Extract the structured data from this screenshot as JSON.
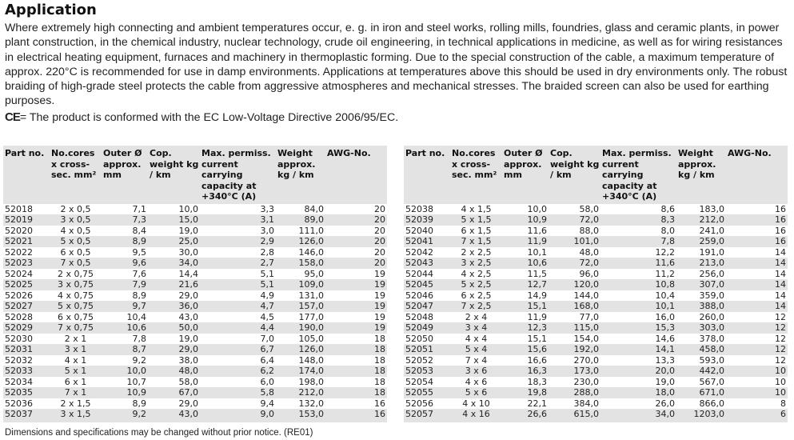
{
  "heading": "Application",
  "intro": "Where extremely high connecting and ambient temperatures occur, e. g. in iron and steel works, rolling mills, foundries, glass and ceramic plants, in power plant construction, in the chemical industry, nuclear technology, crude oil engineering, in technical applications in medicine, as well as for wiring resistances in electrical heating equipment, furnaces and machinery in thermoplastic forming. Due to the special construction of the cable, a maximum temperature of approx. 220°C is recommended for use in damp environments. Applications at temperatures above this should be used in dry environments only. The robust braiding of high-grade steel protects the cable from aggressive atmospheres and mechanical stresses. The braided screen can also be used for earthing purposes.",
  "ce_mark": "CE",
  "ce_text": "= The product is conformed with the EC Low-Voltage Directive 2006/95/EC.",
  "table_headers": {
    "part_no": "Part no.",
    "cores": "No.cores x cross-sec. mm²",
    "outer": "Outer Ø approx. mm",
    "cop": "Cop. weight kg / km",
    "current": "Max. permiss. current carrying capacity at +340°C (A)",
    "weight": "Weight approx. kg / km",
    "awg": "AWG-No."
  },
  "left_rows": [
    [
      "52018",
      "2 x 0,5",
      "7,1",
      "10,0",
      "3,3",
      "84,0",
      "20"
    ],
    [
      "52019",
      "3 x 0,5",
      "7,3",
      "15,0",
      "3,1",
      "89,0",
      "20"
    ],
    [
      "52020",
      "4 x 0,5",
      "8,4",
      "19,0",
      "3,0",
      "111,0",
      "20"
    ],
    [
      "52021",
      "5 x 0,5",
      "8,9",
      "25,0",
      "2,9",
      "126,0",
      "20"
    ],
    [
      "52022",
      "6 x 0,5",
      "9,5",
      "30,0",
      "2,8",
      "146,0",
      "20"
    ],
    [
      "52023",
      "7 x 0,5",
      "9,6",
      "34,0",
      "2,7",
      "158,0",
      "20"
    ],
    [
      "52024",
      "2 x 0,75",
      "7,6",
      "14,4",
      "5,1",
      "95,0",
      "19"
    ],
    [
      "52025",
      "3 x 0,75",
      "7,9",
      "21,6",
      "5,1",
      "109,0",
      "19"
    ],
    [
      "52026",
      "4 x 0,75",
      "8,9",
      "29,0",
      "4,9",
      "131,0",
      "19"
    ],
    [
      "52027",
      "5 x 0,75",
      "9,7",
      "36,0",
      "4,7",
      "157,0",
      "19"
    ],
    [
      "52028",
      "6 x 0,75",
      "10,4",
      "43,0",
      "4,5",
      "177,0",
      "19"
    ],
    [
      "52029",
      "7 x 0,75",
      "10,6",
      "50,0",
      "4,4",
      "190,0",
      "19"
    ],
    [
      "52030",
      "2 x 1",
      "7,8",
      "19,0",
      "7,0",
      "105,0",
      "18"
    ],
    [
      "52031",
      "3 x 1",
      "8,7",
      "29,0",
      "6,7",
      "126,0",
      "18"
    ],
    [
      "52032",
      "4 x 1",
      "9,2",
      "38,0",
      "6,4",
      "148,0",
      "18"
    ],
    [
      "52033",
      "5 x 1",
      "10,0",
      "48,0",
      "6,2",
      "174,0",
      "18"
    ],
    [
      "52034",
      "6 x 1",
      "10,7",
      "58,0",
      "6,0",
      "198,0",
      "18"
    ],
    [
      "52035",
      "7 x 1",
      "10,9",
      "67,0",
      "5,8",
      "212,0",
      "18"
    ],
    [
      "52036",
      "2 x 1,5",
      "8,9",
      "29,0",
      "9,4",
      "132,0",
      "16"
    ],
    [
      "52037",
      "3 x 1,5",
      "9,2",
      "43,0",
      "9,0",
      "153,0",
      "16"
    ]
  ],
  "right_rows": [
    [
      "52038",
      "4 x 1,5",
      "10,0",
      "58,0",
      "8,6",
      "183,0",
      "16"
    ],
    [
      "52039",
      "5 x 1,5",
      "10,9",
      "72,0",
      "8,3",
      "212,0",
      "16"
    ],
    [
      "52040",
      "6 x 1,5",
      "11,6",
      "88,0",
      "8,0",
      "241,0",
      "16"
    ],
    [
      "52041",
      "7 x 1,5",
      "11,9",
      "101,0",
      "7,8",
      "259,0",
      "16"
    ],
    [
      "52042",
      "2 x 2,5",
      "10,1",
      "48,0",
      "12,2",
      "191,0",
      "14"
    ],
    [
      "52043",
      "3 x 2,5",
      "10,6",
      "72,0",
      "11,6",
      "213,0",
      "14"
    ],
    [
      "52044",
      "4 x 2,5",
      "11,5",
      "96,0",
      "11,2",
      "256,0",
      "14"
    ],
    [
      "52045",
      "5 x 2,5",
      "12,7",
      "120,0",
      "10,8",
      "307,0",
      "14"
    ],
    [
      "52046",
      "6 x 2,5",
      "14,9",
      "144,0",
      "10,4",
      "359,0",
      "14"
    ],
    [
      "52047",
      "7 x 2,5",
      "15,1",
      "168,0",
      "10,1",
      "388,0",
      "14"
    ],
    [
      "52048",
      "2 x 4",
      "11,9",
      "77,0",
      "16,0",
      "260,0",
      "12"
    ],
    [
      "52049",
      "3 x 4",
      "12,3",
      "115,0",
      "15,3",
      "303,0",
      "12"
    ],
    [
      "52050",
      "4 x 4",
      "15,1",
      "154,0",
      "14,6",
      "378,0",
      "12"
    ],
    [
      "52051",
      "5 x 4",
      "15,6",
      "192,0",
      "14,1",
      "458,0",
      "12"
    ],
    [
      "52052",
      "7 x 4",
      "16,6",
      "270,0",
      "13,3",
      "593,0",
      "12"
    ],
    [
      "52053",
      "3 x 6",
      "16,3",
      "173,0",
      "20,0",
      "442,0",
      "10"
    ],
    [
      "52054",
      "4 x 6",
      "18,3",
      "230,0",
      "19,0",
      "567,0",
      "10"
    ],
    [
      "52055",
      "5 x 6",
      "19,8",
      "288,0",
      "18,0",
      "671,0",
      "10"
    ],
    [
      "52056",
      "4 x 10",
      "22,1",
      "384,0",
      "26,0",
      "866,0",
      "8"
    ],
    [
      "52057",
      "4 x 16",
      "26,6",
      "615,0",
      "34,0",
      "1203,0",
      "6"
    ]
  ],
  "footnote": "Dimensions and specifications may be changed without prior notice. (RE01)"
}
